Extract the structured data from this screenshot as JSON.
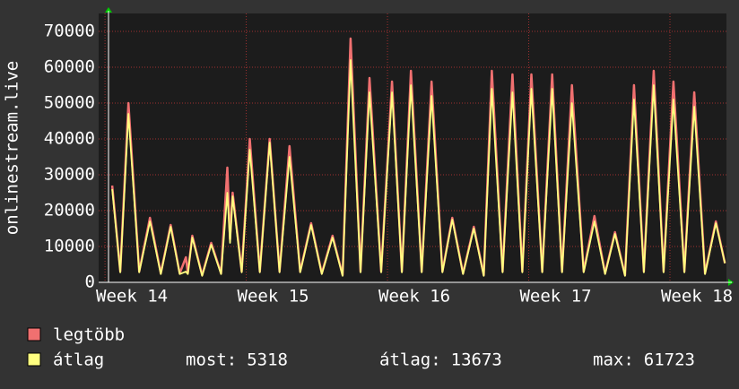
{
  "chart_data": {
    "type": "line",
    "y_label": "onlinestream.live",
    "xlim": [
      13.955,
      18.4
    ],
    "ylim": [
      0,
      75000
    ],
    "xticks": [
      {
        "value": 14,
        "label": "Week 14"
      },
      {
        "value": 15,
        "label": "Week 15"
      },
      {
        "value": 16,
        "label": "Week 16"
      },
      {
        "value": 17,
        "label": "Week 17"
      },
      {
        "value": 18,
        "label": "Week 18"
      }
    ],
    "yticks": [
      0,
      10000,
      20000,
      30000,
      40000,
      50000,
      60000,
      70000
    ],
    "grid": true,
    "x": [
      14.051,
      14.108,
      14.166,
      14.242,
      14.318,
      14.395,
      14.465,
      14.529,
      14.573,
      14.586,
      14.618,
      14.688,
      14.752,
      14.822,
      14.866,
      14.885,
      14.904,
      14.968,
      15.025,
      15.096,
      15.166,
      15.236,
      15.306,
      15.382,
      15.459,
      15.535,
      15.611,
      15.682,
      15.739,
      15.809,
      15.873,
      15.955,
      16.032,
      16.102,
      16.166,
      16.242,
      16.312,
      16.389,
      16.459,
      16.535,
      16.611,
      16.682,
      16.739,
      16.815,
      16.885,
      16.955,
      17.019,
      17.096,
      17.166,
      17.236,
      17.306,
      17.389,
      17.465,
      17.541,
      17.611,
      17.682,
      17.745,
      17.815,
      17.885,
      17.955,
      18.025,
      18.102,
      18.172,
      18.248,
      18.325,
      18.389
    ],
    "series": [
      {
        "name": "legtöbb",
        "color": "#f07070",
        "values": [
          27000,
          3000,
          50000,
          3000,
          18000,
          2500,
          16000,
          2500,
          7000,
          2500,
          13000,
          2000,
          11000,
          2500,
          32000,
          12000,
          25000,
          3000,
          40000,
          3000,
          40000,
          3000,
          38000,
          3000,
          16500,
          2500,
          13000,
          2000,
          68000,
          3000,
          57000,
          3000,
          56000,
          3000,
          59000,
          3000,
          56000,
          3000,
          18000,
          2500,
          15500,
          2000,
          59000,
          3000,
          58000,
          3000,
          58000,
          3000,
          58000,
          3000,
          55000,
          3000,
          18500,
          2500,
          14000,
          2000,
          55000,
          3000,
          59000,
          3000,
          56000,
          3000,
          53000,
          2500,
          17000,
          5318
        ]
      },
      {
        "name": "átlag",
        "color": "#ffff80",
        "values": [
          26000,
          2800,
          47000,
          2800,
          17000,
          2300,
          15500,
          2300,
          3000,
          2300,
          12500,
          1800,
          10500,
          2300,
          25000,
          11000,
          24000,
          2800,
          37000,
          2800,
          39000,
          2800,
          35000,
          2800,
          16000,
          2300,
          12500,
          1800,
          62000,
          2800,
          53000,
          2800,
          53000,
          2800,
          55000,
          2800,
          52000,
          2800,
          17500,
          2300,
          15000,
          1800,
          54000,
          2800,
          53000,
          2800,
          54000,
          2800,
          54000,
          2800,
          50000,
          2800,
          17000,
          2300,
          13500,
          1800,
          51000,
          2800,
          55000,
          2800,
          51000,
          2800,
          49000,
          2300,
          16500,
          5318
        ],
        "stats": [
          {
            "label": "most:",
            "value": 5318
          },
          {
            "label": "átlag:",
            "value": 13673
          },
          {
            "label": "max:",
            "value": 61723
          }
        ]
      }
    ]
  }
}
